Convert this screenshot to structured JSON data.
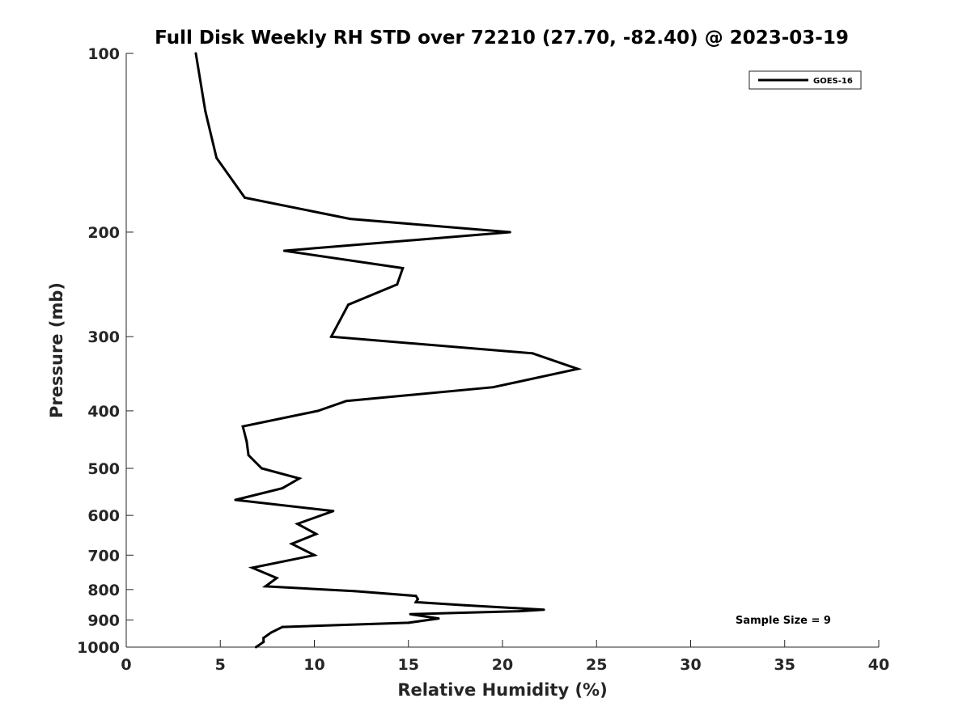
{
  "chart_data": {
    "type": "line",
    "title": "Full Disk Weekly RH STD over 72210 (27.70, -82.40) @ 2023-03-19",
    "xlabel": "Relative Humidity (%)",
    "ylabel": "Pressure (mb)",
    "xlim": [
      0,
      40
    ],
    "ylim": [
      100,
      1000
    ],
    "yscale": "log",
    "yreversed": true,
    "x_ticks": [
      "0",
      "5",
      "10",
      "15",
      "20",
      "25",
      "30",
      "35",
      "40"
    ],
    "y_ticks": [
      "100",
      "200",
      "300",
      "400",
      "500",
      "600",
      "700",
      "800",
      "900",
      "1000"
    ],
    "legend": {
      "position": "top-right",
      "entries": [
        "GOES-16"
      ]
    },
    "grid": false,
    "annotation": "Sample Size = 9",
    "series": [
      {
        "name": "GOES-16",
        "color": "#000000",
        "points": [
          [
            3.7,
            100
          ],
          [
            4.2,
            125
          ],
          [
            4.8,
            150
          ],
          [
            6.3,
            175
          ],
          [
            11.9,
            190
          ],
          [
            20.4,
            200
          ],
          [
            8.4,
            215
          ],
          [
            14.7,
            230
          ],
          [
            14.4,
            245
          ],
          [
            11.8,
            265
          ],
          [
            10.9,
            300
          ],
          [
            21.6,
            320
          ],
          [
            24.0,
            340
          ],
          [
            19.5,
            365
          ],
          [
            11.7,
            385
          ],
          [
            10.2,
            400
          ],
          [
            6.2,
            425
          ],
          [
            6.4,
            450
          ],
          [
            6.5,
            475
          ],
          [
            7.2,
            500
          ],
          [
            9.2,
            520
          ],
          [
            8.3,
            540
          ],
          [
            5.8,
            565
          ],
          [
            11.0,
            590
          ],
          [
            9.1,
            620
          ],
          [
            10.1,
            645
          ],
          [
            8.8,
            670
          ],
          [
            10.0,
            700
          ],
          [
            6.7,
            735
          ],
          [
            8.0,
            765
          ],
          [
            7.4,
            790
          ],
          [
            12.2,
            805
          ],
          [
            15.4,
            820
          ],
          [
            15.5,
            830
          ],
          [
            15.4,
            840
          ],
          [
            18.0,
            850
          ],
          [
            22.2,
            865
          ],
          [
            20.9,
            870
          ],
          [
            15.1,
            880
          ],
          [
            16.6,
            895
          ],
          [
            15.0,
            910
          ],
          [
            8.3,
            925
          ],
          [
            7.7,
            945
          ],
          [
            7.3,
            965
          ],
          [
            7.3,
            980
          ],
          [
            6.9,
            1000
          ]
        ]
      }
    ]
  }
}
